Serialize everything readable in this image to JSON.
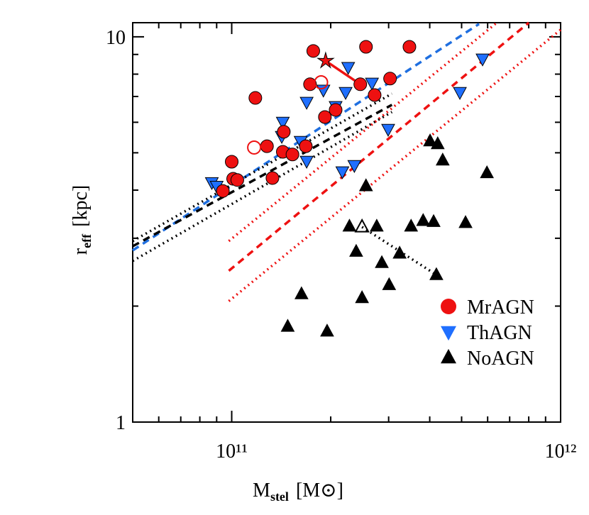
{
  "chart_data": {
    "type": "scatter",
    "xscale": "log",
    "yscale": "log",
    "xlim": [
      50000000000.0,
      1000000000000.0
    ],
    "ylim": [
      1,
      10.88
    ],
    "xticks": [
      {
        "value": 100000000000.0,
        "label": "10¹¹"
      },
      {
        "value": 1000000000000.0,
        "label": "10¹²"
      }
    ],
    "yticks": [
      1,
      10
    ],
    "xminorticks": [
      60000000000.0,
      70000000000.0,
      80000000000.0,
      90000000000.0,
      200000000000.0,
      300000000000.0,
      400000000000.0,
      500000000000.0,
      600000000000.0,
      700000000000.0,
      800000000000.0,
      900000000000.0
    ],
    "yminorticks": [
      2,
      3,
      4,
      5,
      6,
      7,
      8,
      9
    ],
    "xlabel": {
      "main": "M",
      "sub": "stel",
      "unit": "[M⊙]"
    },
    "ylabel": {
      "main": "r",
      "sub": "eff",
      "unit": "[kpc]"
    },
    "legend": "lower right",
    "series": [
      {
        "line": "dashed",
        "color": "#1f6fe0",
        "x": [
          50000000000.0,
          565000000000.0
        ],
        "y": [
          2.79,
          10.8
        ]
      },
      {
        "line": "dashed",
        "color": "#000000",
        "x": [
          50000000000.0,
          307000000000.0
        ],
        "y": [
          2.86,
          6.66
        ]
      },
      {
        "line": "dotted",
        "color": "#000000",
        "x": [
          50000000000.0,
          307000000000.0
        ],
        "y": [
          2.95,
          7.12
        ]
      },
      {
        "line": "dotted",
        "color": "#000000",
        "x": [
          50000000000.0,
          307000000000.0
        ],
        "y": [
          2.62,
          6.38
        ]
      },
      {
        "line": "dashed",
        "color": "#ee1111",
        "x": [
          98000000000.0,
          800000000000.0
        ],
        "y": [
          2.47,
          10.88
        ]
      },
      {
        "line": "dotted",
        "color": "#ee1111",
        "x": [
          98000000000.0,
          640000000000.0
        ],
        "y": [
          2.95,
          10.88
        ]
      },
      {
        "line": "dotted",
        "color": "#ee1111",
        "x": [
          98000000000.0,
          1000000000000.0
        ],
        "y": [
          2.06,
          10.43
        ]
      },
      {
        "line": "solid",
        "color": "#ee1111",
        "x": [
          193000000000.0,
          246000000000.0
        ],
        "y": [
          8.66,
          7.53
        ]
      },
      {
        "line": "dotted",
        "color": "#000000",
        "x": [
          249000000000.0,
          419000000000.0
        ],
        "y": [
          3.21,
          2.41
        ]
      },
      {
        "name": "NoAGN",
        "marker": "triangle-up",
        "color": "#000000",
        "fill": true,
        "x": [
          148000000000.0,
          163000000000.0,
          195000000000.0,
          228000000000.0,
          276000000000.0,
          256000000000.0,
          239000000000.0,
          249000000000.0,
          286000000000.0,
          301000000000.0,
          324000000000.0,
          351000000000.0,
          382000000000.0,
          411000000000.0,
          419000000000.0,
          401000000000.0,
          423000000000.0,
          438000000000.0,
          514000000000.0,
          597000000000.0
        ],
        "y": [
          1.77,
          2.15,
          1.72,
          3.22,
          3.22,
          4.1,
          2.77,
          2.1,
          2.59,
          2.27,
          2.74,
          3.22,
          3.33,
          3.31,
          2.41,
          5.36,
          5.27,
          4.78,
          3.29,
          4.43
        ]
      },
      {
        "marker": "triangle-up",
        "color": "#000000",
        "fill": false,
        "x": [
          249000000000.0
        ],
        "y": [
          3.21
        ]
      },
      {
        "name": "ThAGN",
        "marker": "triangle-down",
        "color": "#1f6fff",
        "fill": true,
        "x": [
          87000000000.0,
          90000000000.0,
          143000000000.0,
          142000000000.0,
          162000000000.0,
          169000000000.0,
          190000000000.0,
          169000000000.0,
          207000000000.0,
          222000000000.0,
          217000000000.0,
          236000000000.0,
          226000000000.0,
          267000000000.0,
          299000000000.0,
          494000000000.0,
          579000000000.0
        ],
        "y": [
          4.19,
          4.1,
          6.01,
          5.52,
          5.36,
          6.77,
          7.28,
          4.76,
          6.6,
          7.18,
          4.47,
          4.64,
          8.34,
          7.59,
          5.76,
          7.18,
          8.77
        ]
      },
      {
        "name": "MrAGN",
        "marker": "circle",
        "color": "#ee1111",
        "fill": true,
        "x": [
          94000000000.0,
          101000000000.0,
          104000000000.0,
          100000000000.0,
          118000000000.0,
          128000000000.0,
          133000000000.0,
          143000000000.0,
          144000000000.0,
          153000000000.0,
          168000000000.0,
          177000000000.0,
          173000000000.0,
          192000000000.0,
          207000000000.0,
          256000000000.0,
          246000000000.0,
          272000000000.0,
          303000000000.0,
          347000000000.0
        ],
        "y": [
          3.98,
          4.28,
          4.25,
          4.74,
          6.94,
          5.2,
          4.3,
          5.03,
          5.67,
          4.95,
          5.2,
          9.19,
          7.53,
          6.19,
          6.46,
          9.42,
          7.53,
          7.06,
          7.79,
          9.42
        ]
      },
      {
        "marker": "circle",
        "color": "#ee1111",
        "fill": false,
        "x": [
          117000000000.0,
          187000000000.0
        ],
        "y": [
          5.16,
          7.62
        ]
      },
      {
        "marker": "star",
        "color": "#ee1111",
        "fill": true,
        "x": [
          193000000000.0
        ],
        "y": [
          8.66
        ]
      }
    ]
  }
}
